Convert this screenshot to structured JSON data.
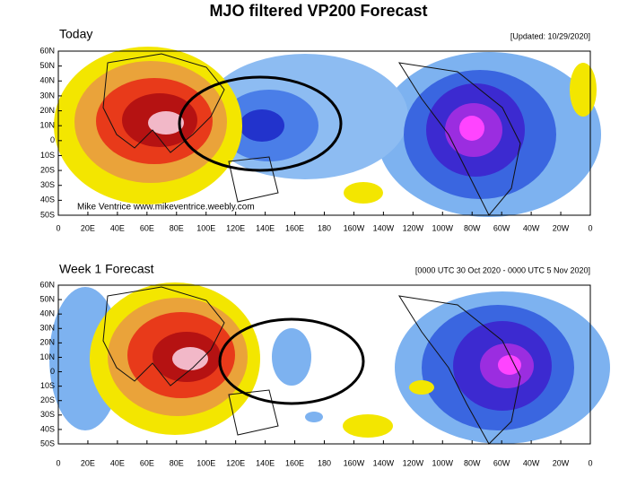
{
  "title": "MJO filtered VP200 Forecast",
  "panels": [
    {
      "title": "Today",
      "note": "[Updated: 10/29/2020]",
      "credit": "Mike Ventrice www.mikeventrice.weebly.com"
    },
    {
      "title": "Week 1 Forecast",
      "note": "[0000 UTC 30 Oct 2020 - 0000 UTC 5 Nov 2020]"
    }
  ],
  "lat_labels": [
    "60N",
    "50N",
    "40N",
    "30N",
    "20N",
    "10N",
    "0",
    "10S",
    "20S",
    "30S",
    "40S",
    "50S"
  ],
  "lon_labels": [
    "0",
    "20E",
    "40E",
    "60E",
    "80E",
    "100E",
    "120E",
    "140E",
    "160E",
    "180",
    "160W",
    "140W",
    "120W",
    "100W",
    "80W",
    "60W",
    "40W",
    "20W",
    "0"
  ]
}
